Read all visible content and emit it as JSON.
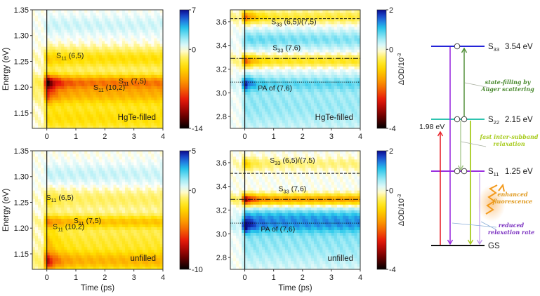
{
  "chart_data": [
    {
      "id": "nir-hgte",
      "type": "heatmap",
      "xlabel": "",
      "ylabel": "Energy (eV)",
      "xlim": [
        -0.5,
        4
      ],
      "ylim": [
        1.12,
        1.35
      ],
      "xticks": [
        0,
        1,
        2,
        3,
        4
      ],
      "yticks": [
        1.15,
        1.2,
        1.25,
        1.3,
        1.35
      ],
      "ytick_labels": [
        "1.15",
        "1.20",
        "1.25",
        "1.30",
        "1.35"
      ],
      "sample_label": "HgTe-filled",
      "colorbar": {
        "min": -14,
        "max": 7,
        "ticks": [
          7,
          0,
          -14
        ],
        "label": ""
      },
      "bands": [
        {
          "energy": 1.21,
          "amp": -13,
          "decay": 0.35,
          "long": -6,
          "width": 0.015
        },
        {
          "energy": 1.185,
          "amp": -8,
          "decay": 0.3,
          "long": -4,
          "width": 0.018
        },
        {
          "energy": 1.255,
          "amp": -4,
          "decay": 0.5,
          "long": -3,
          "width": 0.02
        },
        {
          "energy": 1.14,
          "amp": -3,
          "decay": 0.5,
          "long": -3,
          "width": 0.03
        },
        {
          "energy": 1.32,
          "amp": 1,
          "decay": 5,
          "long": 0.8,
          "width": 0.02
        }
      ],
      "annotations": [
        {
          "base": "S",
          "sub": "11",
          "text": " (6,5)",
          "x": 0.8,
          "y": 1.257
        },
        {
          "base": "S",
          "sub": "11",
          "text": " (7,5)",
          "x": 2.95,
          "y": 1.207
        },
        {
          "base": "S",
          "sub": "11",
          "text": " (10,2)",
          "x": 2.15,
          "y": 1.195
        }
      ],
      "hlines": []
    },
    {
      "id": "vis-hgte",
      "type": "heatmap",
      "xlabel": "",
      "ylabel": "",
      "xlim": [
        -0.5,
        4
      ],
      "ylim": [
        2.7,
        3.7
      ],
      "xticks": [
        0,
        1,
        2,
        3,
        4
      ],
      "yticks": [
        2.8,
        3.0,
        3.2,
        3.4,
        3.6
      ],
      "ytick_labels": [
        "2.8",
        "3.0",
        "3.2",
        "3.4",
        "3.6"
      ],
      "sample_label": "HgTe-filled",
      "colorbar": {
        "min": -4,
        "max": 2,
        "ticks": [
          2,
          0,
          -4
        ],
        "label": "ΔOD/10-3"
      },
      "bands": [
        {
          "energy": 3.64,
          "amp": -2.2,
          "decay": 0.35,
          "long": -0.6,
          "width": 0.05
        },
        {
          "energy": 3.27,
          "amp": -2.4,
          "decay": 0.3,
          "long": -0.8,
          "width": 0.05
        },
        {
          "energy": 3.08,
          "amp": 1.8,
          "decay": 0.25,
          "long": 0.5,
          "width": 0.06
        },
        {
          "energy": 3.45,
          "amp": 0.8,
          "decay": 3,
          "long": 0.6,
          "width": 0.08
        },
        {
          "energy": 2.9,
          "amp": 0.6,
          "decay": 3,
          "long": 0.5,
          "width": 0.25
        }
      ],
      "annotations": [
        {
          "base": "S",
          "sub": "33",
          "text": " (6,5)/(7,5)",
          "x": 1.7,
          "y": 3.58
        },
        {
          "base": "S",
          "sub": "33",
          "text": " (7,6)",
          "x": 1.45,
          "y": 3.36
        },
        {
          "base": "",
          "sub": "",
          "text": "PA of (7,6)",
          "x": 1.05,
          "y": 3.02
        }
      ],
      "hlines": [
        {
          "y": 3.625,
          "style": "dashed"
        },
        {
          "y": 3.29,
          "style": "dashdot"
        },
        {
          "y": 3.09,
          "style": "dotted"
        }
      ]
    },
    {
      "id": "nir-unfilled",
      "type": "heatmap",
      "xlabel": "Time (ps)",
      "ylabel": "Energy (eV)",
      "xlim": [
        -0.5,
        4
      ],
      "ylim": [
        1.12,
        1.35
      ],
      "xticks": [
        0,
        1,
        2,
        3,
        4
      ],
      "yticks": [
        1.15,
        1.2,
        1.25,
        1.3,
        1.35
      ],
      "ytick_labels": [
        "1.15",
        "1.20",
        "1.25",
        "1.30",
        "1.35"
      ],
      "sample_label": "unfilled",
      "colorbar": {
        "min": -10,
        "max": 5,
        "ticks": [
          5,
          0,
          -10
        ],
        "label": ""
      },
      "bands": [
        {
          "energy": 1.213,
          "amp": -4,
          "decay": 0.5,
          "long": -2.6,
          "width": 0.013
        },
        {
          "energy": 1.135,
          "amp": -7,
          "decay": 0.35,
          "long": -3,
          "width": 0.02
        },
        {
          "energy": 1.175,
          "amp": -3,
          "decay": 0.4,
          "long": -1.5,
          "width": 0.03
        },
        {
          "energy": 1.255,
          "amp": -2,
          "decay": 0.4,
          "long": -1,
          "width": 0.02
        },
        {
          "energy": 1.305,
          "amp": 0.8,
          "decay": 5,
          "long": 0.6,
          "width": 0.02
        }
      ],
      "annotations": [
        {
          "base": "S",
          "sub": "11",
          "text": " (6,5)",
          "x": 0.45,
          "y": 1.255
        },
        {
          "base": "S",
          "sub": "11",
          "text": " (7,5)",
          "x": 1.4,
          "y": 1.21
        },
        {
          "base": "S",
          "sub": "11",
          "text": " (10,2)",
          "x": 0.75,
          "y": 1.198
        }
      ],
      "hlines": []
    },
    {
      "id": "vis-unfilled",
      "type": "heatmap",
      "xlabel": "Time (ps)",
      "ylabel": "",
      "xlim": [
        -0.5,
        4
      ],
      "ylim": [
        2.7,
        3.7
      ],
      "xticks": [
        0,
        1,
        2,
        3,
        4
      ],
      "yticks": [
        2.8,
        3.0,
        3.2,
        3.4,
        3.6
      ],
      "ytick_labels": [
        "2.8",
        "3.0",
        "3.2",
        "3.4",
        "3.6"
      ],
      "sample_label": "unfilled",
      "colorbar": {
        "min": -4,
        "max": 2,
        "ticks": [
          2,
          0,
          -4
        ],
        "label": "ΔOD/10-3"
      },
      "bands": [
        {
          "energy": 3.29,
          "amp": -3.6,
          "decay": 0.3,
          "long": -1.6,
          "width": 0.045
        },
        {
          "energy": 3.59,
          "amp": -1.2,
          "decay": 0.3,
          "long": -0.3,
          "width": 0.05
        },
        {
          "energy": 3.07,
          "amp": 2.0,
          "decay": 0.25,
          "long": 0.7,
          "width": 0.06
        },
        {
          "energy": 3.15,
          "amp": 0.8,
          "decay": 3,
          "long": 0.7,
          "width": 0.06
        },
        {
          "energy": 2.95,
          "amp": 0.6,
          "decay": 3,
          "long": 0.6,
          "width": 0.25
        }
      ],
      "annotations": [
        {
          "base": "S",
          "sub": "33",
          "text": " (6,5)/(7,5)",
          "x": 1.65,
          "y": 3.6
        },
        {
          "base": "S",
          "sub": "33",
          "text": " (7,6)",
          "x": 1.65,
          "y": 3.36
        },
        {
          "base": "",
          "sub": "",
          "text": "PA of (7,6)",
          "x": 1.15,
          "y": 3.02
        }
      ],
      "hlines": [
        {
          "y": 3.51,
          "style": "dashed"
        },
        {
          "y": 3.29,
          "style": "dashdot"
        },
        {
          "y": 3.09,
          "style": "dotted"
        }
      ]
    }
  ],
  "energy_diagram": {
    "levels": [
      {
        "name": "S",
        "sub": "33",
        "value": "3.54 eV",
        "color": "#2424d8"
      },
      {
        "name": "S",
        "sub": "22",
        "value": "2.15 eV",
        "color": "#2ec4b0"
      },
      {
        "name": "S",
        "sub": "11",
        "value": "1.25 eV",
        "color": "#9b2fe0"
      },
      {
        "name": "GS",
        "sub": "",
        "value": "",
        "color": "#111111"
      }
    ],
    "excitation_label": "1.98 eV",
    "notes": [
      {
        "lines": [
          "state-filling by",
          "Auger scattering"
        ],
        "color": "#4a8a30"
      },
      {
        "lines": [
          "fast inter-subband",
          "relaxation"
        ],
        "color": "#a8cc20"
      },
      {
        "lines": [
          "enhanced",
          "fluorescence"
        ],
        "color": "#e09a20"
      },
      {
        "lines": [
          "reduced",
          "relaxation rate"
        ],
        "color": "#7a30c0"
      }
    ],
    "colors": {
      "excitation": "#e8232b",
      "s33_decay": "#9b2fe0",
      "auger": "#4a8a30",
      "s22_relax": "#9cc080",
      "s22_decay": "#a8cc20",
      "s11_decay": "#c59af0",
      "fluorescence": "#f39a1c"
    }
  }
}
